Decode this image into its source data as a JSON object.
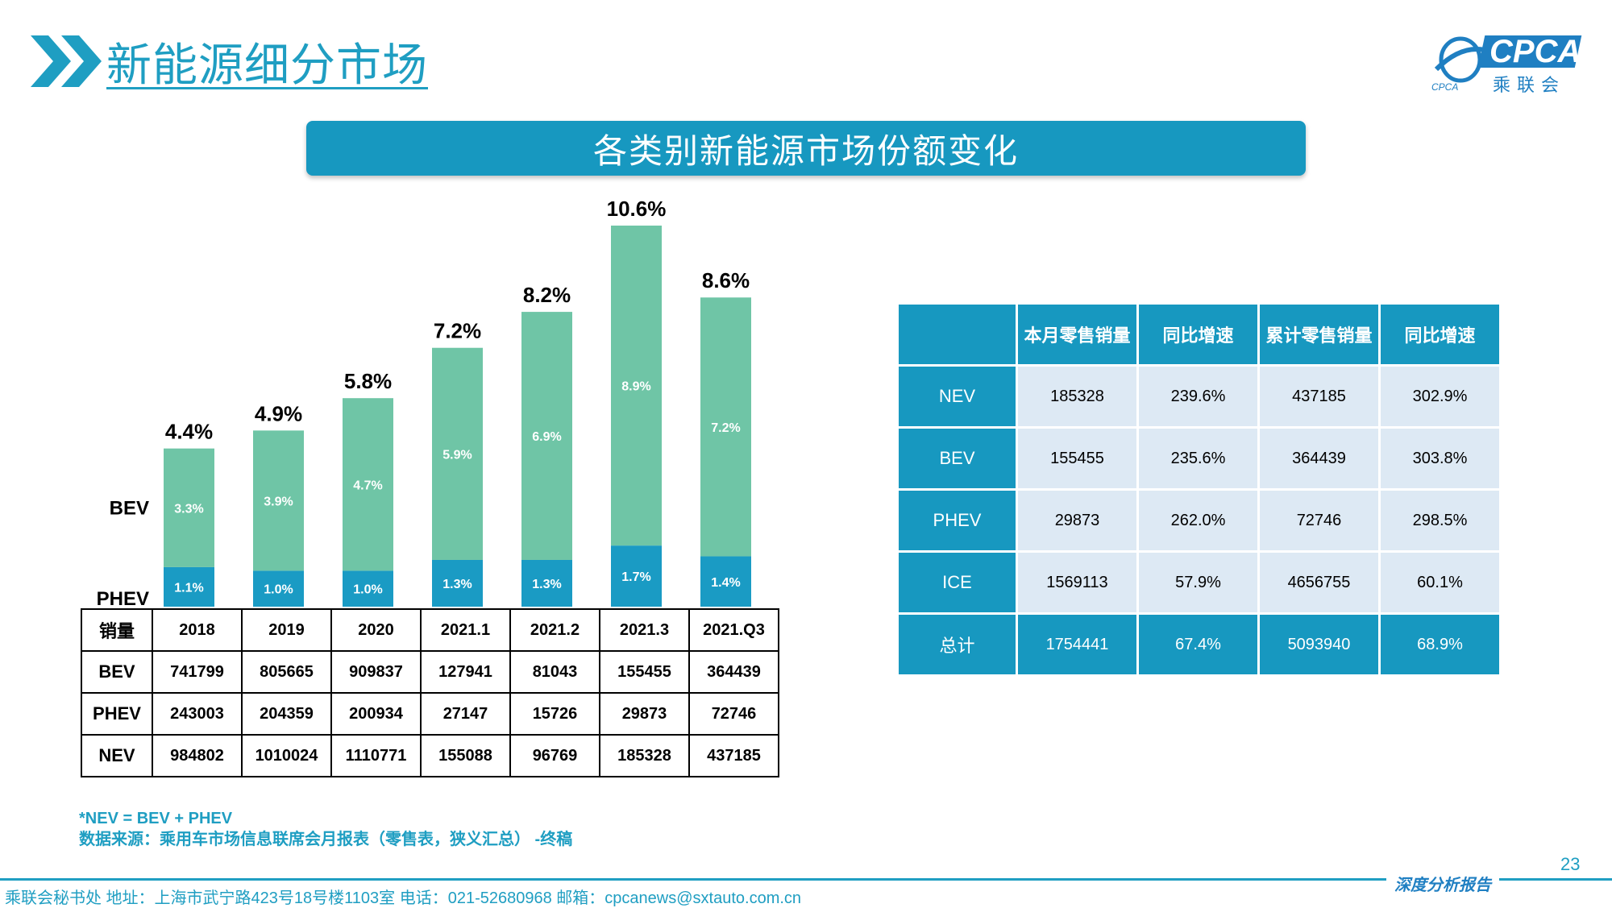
{
  "header": {
    "title": "新能源细分市场",
    "logo_text": "CPCA",
    "logo_cn": "乘联会",
    "logo_sub": "CPCA"
  },
  "banner": {
    "title": "各类别新能源市场份额变化"
  },
  "colors": {
    "accent": "#1798c0",
    "bev": "#6fc5a6",
    "phev": "#1a9bc4",
    "cell": "#dde9f4"
  },
  "chart_data": {
    "type": "bar",
    "stacked": true,
    "categories": [
      "2018",
      "2019",
      "2020",
      "2021.1",
      "2021.2",
      "2021.3",
      "2021.Q3"
    ],
    "series": [
      {
        "name": "PHEV",
        "values": [
          1.1,
          1.0,
          1.0,
          1.3,
          1.3,
          1.7,
          1.4
        ],
        "labels": [
          "1.1%",
          "1.0%",
          "1.0%",
          "1.3%",
          "1.3%",
          "1.7%",
          "1.4%"
        ]
      },
      {
        "name": "BEV",
        "values": [
          3.3,
          3.9,
          4.7,
          5.9,
          6.9,
          8.9,
          7.2
        ],
        "labels": [
          "3.3%",
          "3.9%",
          "4.7%",
          "5.9%",
          "6.9%",
          "8.9%",
          "7.2%"
        ]
      }
    ],
    "totals": [
      "4.4%",
      "4.9%",
      "5.8%",
      "7.2%",
      "8.2%",
      "10.6%",
      "8.6%"
    ],
    "total_values": [
      4.4,
      4.9,
      5.8,
      7.2,
      8.2,
      10.6,
      8.6
    ],
    "unit": "%",
    "ylim": [
      0,
      10.6
    ],
    "grid": false,
    "legend": "left"
  },
  "sales_table": {
    "header": [
      "销量",
      "2018",
      "2019",
      "2020",
      "2021.1",
      "2021.2",
      "2021.3",
      "2021.Q3"
    ],
    "rows": [
      [
        "BEV",
        "741799",
        "805665",
        "909837",
        "127941",
        "81043",
        "155455",
        "364439"
      ],
      [
        "PHEV",
        "243003",
        "204359",
        "200934",
        "27147",
        "15726",
        "29873",
        "72746"
      ],
      [
        "NEV",
        "984802",
        "1010024",
        "1110771",
        "155088",
        "96769",
        "185328",
        "437185"
      ]
    ]
  },
  "notes": {
    "line1": "*NEV = BEV + PHEV",
    "line2": "数据来源：乘用车市场信息联席会月报表（零售表，狭义汇总） -终稿"
  },
  "retail_table": {
    "header": [
      "",
      "本月零售销量",
      "同比增速",
      "累计零售销量",
      "同比增速"
    ],
    "rows": [
      [
        "NEV",
        "185328",
        "239.6%",
        "437185",
        "302.9%"
      ],
      [
        "BEV",
        "155455",
        "235.6%",
        "364439",
        "303.8%"
      ],
      [
        "PHEV",
        "29873",
        "262.0%",
        "72746",
        "298.5%"
      ],
      [
        "ICE",
        "1569113",
        "57.9%",
        "4656755",
        "60.1%"
      ],
      [
        "总计",
        "1754441",
        "67.4%",
        "5093940",
        "68.9%"
      ]
    ]
  },
  "footer": {
    "text": "乘联会秘书处   地址：上海市武宁路423号18号楼1103室  电话：021-52680968   邮箱：cpcanews@sxtauto.com.cn",
    "tag": "深度分析报告",
    "page_number": "23"
  }
}
